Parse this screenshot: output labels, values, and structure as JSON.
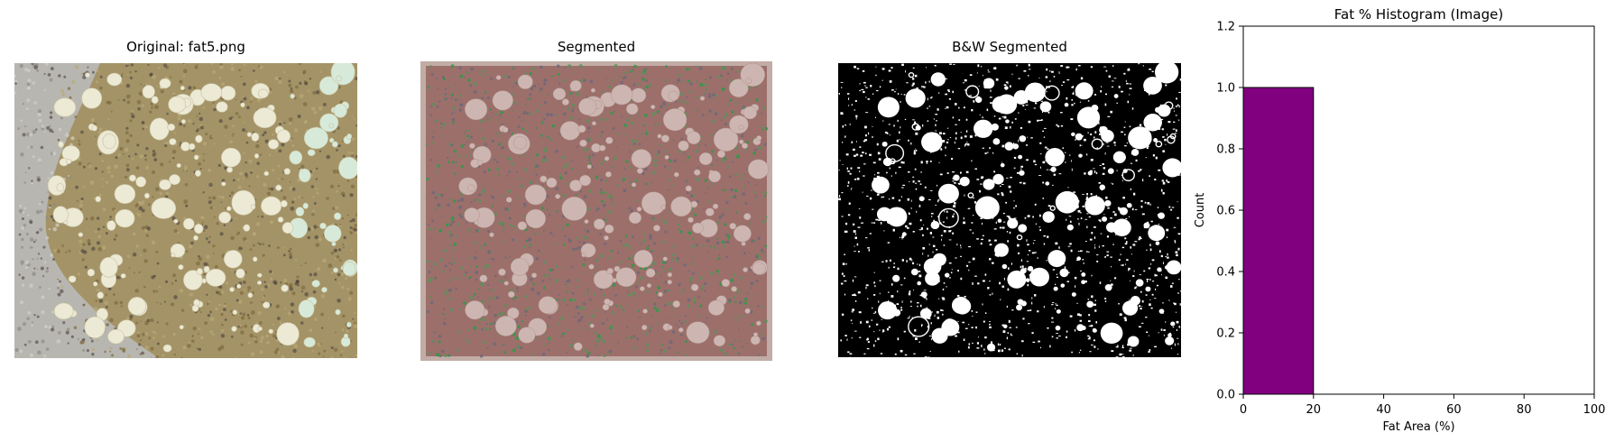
{
  "panels": [
    {
      "title": "Original: fat5.png",
      "kind": "original"
    },
    {
      "title": "Segmented",
      "kind": "segmented"
    },
    {
      "title": "B&W Segmented",
      "kind": "bw"
    }
  ],
  "chart_data": {
    "type": "bar",
    "title": "Fat % Histogram (Image)",
    "xlabel": "Fat Area (%)",
    "ylabel": "Count",
    "xlim": [
      0,
      100
    ],
    "ylim": [
      0,
      1.2
    ],
    "x_ticks": [
      "0",
      "20",
      "40",
      "60",
      "80",
      "100"
    ],
    "y_ticks": [
      "0.0",
      "0.2",
      "0.4",
      "0.6",
      "0.8",
      "1.0",
      "1.2"
    ],
    "bins": [
      {
        "start": 0,
        "end": 20,
        "count": 1
      }
    ],
    "bar_color": "#800080",
    "grid": false
  }
}
